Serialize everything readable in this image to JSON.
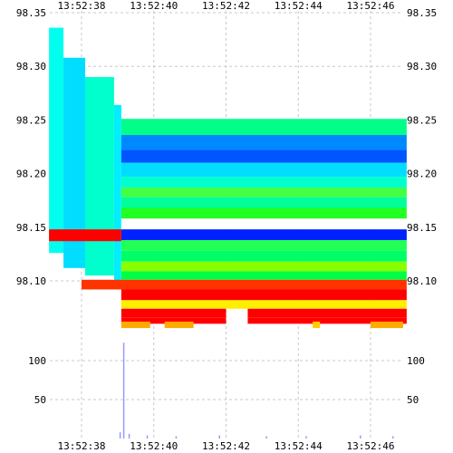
{
  "chart_data": {
    "type": "heatmap",
    "title": "",
    "xlabel": "",
    "ylabel": "",
    "x_ticks": [
      "13:52:38",
      "13:52:40",
      "13:52:42",
      "13:52:44",
      "13:52:46"
    ],
    "price_ticks": [
      "98.35",
      "98.30",
      "98.25",
      "98.20",
      "98.15",
      "98.10"
    ],
    "price_tick_values": [
      98.35,
      98.3,
      98.25,
      98.2,
      98.15,
      98.1
    ],
    "volume_ticks": [
      "100",
      "50"
    ],
    "volume_tick_values": [
      100,
      50
    ],
    "price_range": [
      98.055,
      98.35
    ],
    "volume_range": [
      0,
      123
    ],
    "time_range_seconds": [
      37.1,
      47.0
    ],
    "grid": true,
    "colors": {
      "very_low": "#0000ff",
      "low": "#00ffff",
      "mid": "#00ff00",
      "high": "#ffff00",
      "very_high": "#ff0000",
      "volume_bars": "#9999ff",
      "grid": "#c8c8c8"
    },
    "heat_bands": [
      {
        "t": [
          37.1,
          37.5
        ],
        "p": [
          98.126,
          98.336
        ],
        "color": "#00ffee"
      },
      {
        "t": [
          37.5,
          38.1
        ],
        "p": [
          98.112,
          98.308
        ],
        "color": "#00ddff"
      },
      {
        "t": [
          38.1,
          38.9
        ],
        "p": [
          98.105,
          98.29
        ],
        "color": "#00ffcc"
      },
      {
        "t": [
          38.9,
          39.1
        ],
        "p": [
          98.098,
          98.264
        ],
        "color": "#00eeff"
      },
      {
        "t": [
          39.1,
          47.0
        ],
        "p": [
          98.236,
          98.251
        ],
        "color": "#00ff88"
      },
      {
        "t": [
          39.1,
          47.0
        ],
        "p": [
          98.222,
          98.236
        ],
        "color": "#0088ff"
      },
      {
        "t": [
          39.1,
          47.0
        ],
        "p": [
          98.21,
          98.222
        ],
        "color": "#0055ff"
      },
      {
        "t": [
          39.1,
          47.0
        ],
        "p": [
          98.197,
          98.21
        ],
        "color": "#00ddff"
      },
      {
        "t": [
          39.1,
          47.0
        ],
        "p": [
          98.187,
          98.197
        ],
        "color": "#00ffcc"
      },
      {
        "t": [
          39.1,
          47.0
        ],
        "p": [
          98.178,
          98.187
        ],
        "color": "#44ff44"
      },
      {
        "t": [
          39.1,
          47.0
        ],
        "p": [
          98.168,
          98.178
        ],
        "color": "#00ff99"
      },
      {
        "t": [
          39.1,
          47.0
        ],
        "p": [
          98.158,
          98.168
        ],
        "color": "#22ff22"
      },
      {
        "t": [
          39.1,
          47.0
        ],
        "p": [
          98.148,
          98.158
        ],
        "color": "#ffffff"
      },
      {
        "t": [
          39.1,
          47.0
        ],
        "p": [
          98.138,
          98.148
        ],
        "color": "#0022ff"
      },
      {
        "t": [
          39.1,
          47.0
        ],
        "p": [
          98.128,
          98.138
        ],
        "color": "#22ff55"
      },
      {
        "t": [
          39.1,
          47.0
        ],
        "p": [
          98.118,
          98.128
        ],
        "color": "#00ff66"
      },
      {
        "t": [
          39.1,
          47.0
        ],
        "p": [
          98.109,
          98.118
        ],
        "color": "#88ff00"
      },
      {
        "t": [
          39.1,
          47.0
        ],
        "p": [
          98.101,
          98.109
        ],
        "color": "#00ff44"
      },
      {
        "t": [
          38.0,
          47.0
        ],
        "p": [
          98.092,
          98.101
        ],
        "color": "#ff3300"
      },
      {
        "t": [
          39.1,
          47.0
        ],
        "p": [
          98.082,
          98.092
        ],
        "color": "#ff0000"
      },
      {
        "t": [
          39.1,
          47.0
        ],
        "p": [
          98.074,
          98.082
        ],
        "color": "#ffee00"
      },
      {
        "t": [
          39.1,
          42.0
        ],
        "p": [
          98.066,
          98.074
        ],
        "color": "#ff0000"
      },
      {
        "t": [
          42.6,
          47.0
        ],
        "p": [
          98.066,
          98.074
        ],
        "color": "#ff0000"
      },
      {
        "t": [
          39.1,
          42.0
        ],
        "p": [
          98.06,
          98.066
        ],
        "color": "#ff0000"
      },
      {
        "t": [
          42.6,
          47.0
        ],
        "p": [
          98.06,
          98.066
        ],
        "color": "#ff0000"
      },
      {
        "t": [
          37.1,
          39.1
        ],
        "p": [
          98.137,
          98.148
        ],
        "color": "#ff0000"
      },
      {
        "t": [
          39.1,
          39.9
        ],
        "p": [
          98.056,
          98.062
        ],
        "color": "#ffaa00"
      },
      {
        "t": [
          40.3,
          41.1
        ],
        "p": [
          98.056,
          98.062
        ],
        "color": "#ffaa00"
      },
      {
        "t": [
          44.4,
          44.6
        ],
        "p": [
          98.056,
          98.062
        ],
        "color": "#ffcc00"
      },
      {
        "t": [
          46.0,
          46.9
        ],
        "p": [
          98.056,
          98.062
        ],
        "color": "#ffaa00"
      }
    ],
    "volume_spikes": [
      {
        "t": 39.15,
        "v": 123
      },
      {
        "t": 39.05,
        "v": 8
      },
      {
        "t": 39.3,
        "v": 6
      },
      {
        "t": 39.8,
        "v": 4
      },
      {
        "t": 40.6,
        "v": 3
      },
      {
        "t": 41.8,
        "v": 4
      },
      {
        "t": 43.1,
        "v": 3
      },
      {
        "t": 44.2,
        "v": 3
      },
      {
        "t": 45.7,
        "v": 4
      },
      {
        "t": 46.6,
        "v": 3
      }
    ]
  }
}
